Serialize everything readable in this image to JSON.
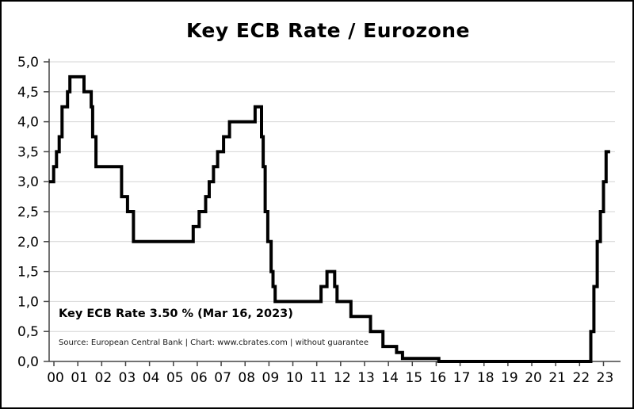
{
  "title": "Key ECB Rate / Eurozone",
  "annotation": {
    "current_rate_label": "Key ECB Rate 3.50 % (Mar 16, 2023)",
    "source_line": "Source: European Central Bank | Chart: www.cbrates.com | without guarantee"
  },
  "colors": {
    "line": "#000000",
    "grid": "#d4d4d4",
    "axis": "#444444",
    "tick": "#444444",
    "background": "#ffffff",
    "border": "#000000",
    "text": "#000000"
  },
  "chart_data": {
    "type": "line",
    "style": "step",
    "title": "Key ECB Rate / Eurozone",
    "series_name": "Key ECB Rate (%)",
    "xlabel": "",
    "ylabel": "",
    "ylim": [
      0,
      5
    ],
    "xlim_years": [
      2000,
      2023
    ],
    "grid": "horizontal",
    "legend": "none",
    "y_tick_values": [
      0,
      0.5,
      1,
      1.5,
      2,
      2.5,
      3,
      3.5,
      4,
      4.5,
      5
    ],
    "y_tick_labels": [
      "0,0",
      "0,5",
      "1,0",
      "1,5",
      "2,0",
      "2,5",
      "3,0",
      "3,5",
      "4,0",
      "4,5",
      "5,0"
    ],
    "x_tick_labels": [
      "00",
      "01",
      "02",
      "03",
      "04",
      "05",
      "06",
      "07",
      "08",
      "09",
      "10",
      "11",
      "12",
      "13",
      "14",
      "15",
      "16",
      "17",
      "18",
      "19",
      "20",
      "21",
      "22",
      "23"
    ],
    "start": {
      "year": 1999.9,
      "rate": 3.0
    },
    "end_year": 2023.38,
    "steps": [
      [
        2000.09,
        3.25
      ],
      [
        2000.21,
        3.5
      ],
      [
        2000.32,
        3.75
      ],
      [
        2000.44,
        4.25
      ],
      [
        2000.67,
        4.5
      ],
      [
        2000.77,
        4.75
      ],
      [
        2001.36,
        4.5
      ],
      [
        2001.66,
        4.25
      ],
      [
        2001.72,
        3.75
      ],
      [
        2001.86,
        3.25
      ],
      [
        2002.93,
        2.75
      ],
      [
        2003.18,
        2.5
      ],
      [
        2003.43,
        2.0
      ],
      [
        2005.93,
        2.25
      ],
      [
        2006.18,
        2.5
      ],
      [
        2006.45,
        2.75
      ],
      [
        2006.6,
        3.0
      ],
      [
        2006.78,
        3.25
      ],
      [
        2006.95,
        3.5
      ],
      [
        2007.2,
        3.75
      ],
      [
        2007.45,
        4.0
      ],
      [
        2008.52,
        4.25
      ],
      [
        2008.79,
        3.75
      ],
      [
        2008.86,
        3.25
      ],
      [
        2008.94,
        2.5
      ],
      [
        2009.05,
        2.0
      ],
      [
        2009.19,
        1.5
      ],
      [
        2009.27,
        1.25
      ],
      [
        2009.36,
        1.0
      ],
      [
        2011.28,
        1.25
      ],
      [
        2011.53,
        1.5
      ],
      [
        2011.85,
        1.25
      ],
      [
        2011.95,
        1.0
      ],
      [
        2012.53,
        0.75
      ],
      [
        2013.35,
        0.5
      ],
      [
        2013.87,
        0.25
      ],
      [
        2014.44,
        0.15
      ],
      [
        2014.69,
        0.05
      ],
      [
        2016.21,
        0.0
      ],
      [
        2022.57,
        0.5
      ],
      [
        2022.7,
        1.25
      ],
      [
        2022.84,
        2.0
      ],
      [
        2022.97,
        2.5
      ],
      [
        2023.1,
        3.0
      ],
      [
        2023.21,
        3.5
      ]
    ],
    "latest": {
      "rate_percent": 3.5,
      "date": "Mar 16, 2023"
    }
  }
}
